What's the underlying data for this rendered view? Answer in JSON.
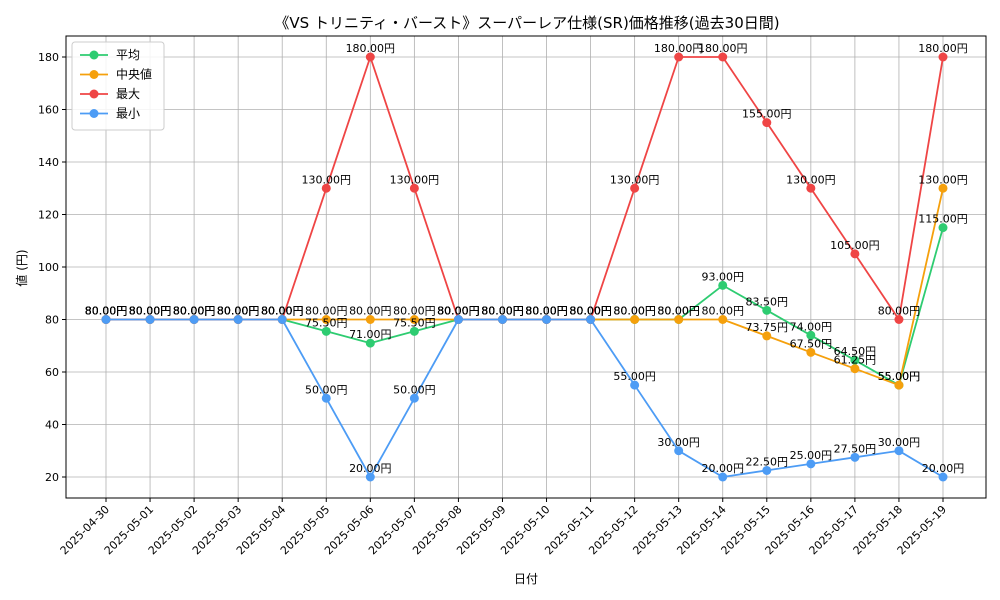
{
  "chart_data": {
    "type": "line",
    "title": "《VS トリニティ・バースト》スーパーレア仕様(SR)価格推移(過去30日間)",
    "xlabel": "日付",
    "ylabel": "値 (円)",
    "categories": [
      "2025-04-30",
      "2025-05-01",
      "2025-05-02",
      "2025-05-03",
      "2025-05-04",
      "2025-05-05",
      "2025-05-06",
      "2025-05-07",
      "2025-05-08",
      "2025-05-09",
      "2025-05-10",
      "2025-05-11",
      "2025-05-12",
      "2025-05-13",
      "2025-05-14",
      "2025-05-15",
      "2025-05-16",
      "2025-05-17",
      "2025-05-18",
      "2025-05-19"
    ],
    "ylim": [
      12,
      188
    ],
    "yticks": [
      20,
      40,
      60,
      80,
      100,
      120,
      140,
      160,
      180
    ],
    "grid": true,
    "legend_position": "top-left",
    "value_label_suffix": "円",
    "series": [
      {
        "name": "平均",
        "color": "#2ecc71",
        "values": [
          80,
          80,
          80,
          80,
          80,
          75.5,
          71,
          75.5,
          80,
          80,
          80,
          80,
          80,
          80,
          93,
          83.5,
          74,
          64.5,
          55,
          115
        ]
      },
      {
        "name": "中央値",
        "color": "#f5a00c",
        "values": [
          80,
          80,
          80,
          80,
          80,
          80,
          80,
          80,
          80,
          80,
          80,
          80,
          80,
          80,
          80,
          73.75,
          67.5,
          61.25,
          55,
          130
        ]
      },
      {
        "name": "最大",
        "color": "#ef4545",
        "values": [
          80,
          80,
          80,
          80,
          80,
          130,
          180,
          130,
          80,
          80,
          80,
          80,
          130,
          180,
          180,
          155,
          130,
          105,
          80,
          180
        ]
      },
      {
        "name": "最小",
        "color": "#4d9cf5",
        "values": [
          80,
          80,
          80,
          80,
          80,
          50,
          20,
          50,
          80,
          80,
          80,
          80,
          55,
          30,
          20,
          22.5,
          25,
          27.5,
          30,
          20
        ]
      }
    ]
  }
}
